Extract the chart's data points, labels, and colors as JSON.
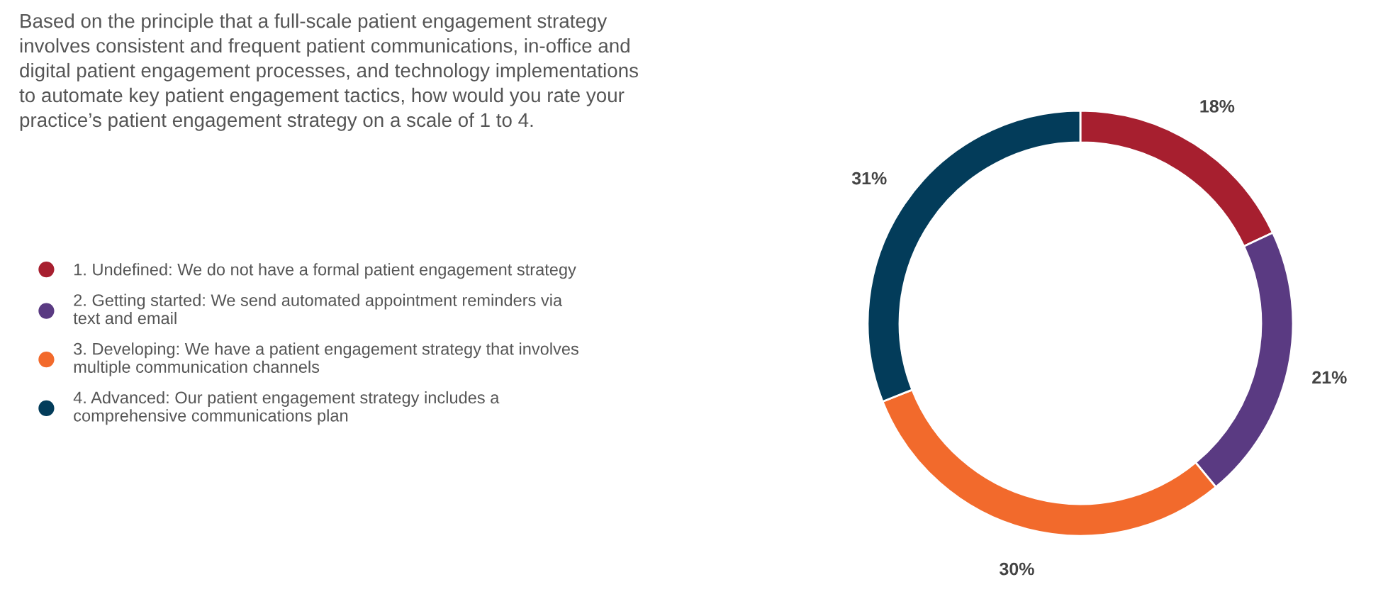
{
  "chart_data": {
    "type": "donut",
    "title": "Based on the principle that a full-scale patient engagement strategy\ninvolves consistent and frequent patient communications, in-office and\ndigital patient engagement processes, and technology implementations\nto automate key patient engagement tactics, how would you rate your\npractice’s patient engagement strategy on a scale of 1 to 4.",
    "categories": [
      "1. Undefined: We do not have a formal patient engagement strategy",
      "2. Getting started: We send automated appointment reminders via\ntext and email",
      "3. Developing: We have a patient engagement strategy that involves\nmultiple communication channels",
      "4. Advanced: Our patient engagement strategy includes a\ncomprehensive communications plan"
    ],
    "values": [
      18,
      21,
      30,
      31
    ],
    "colors": [
      "#a71f2f",
      "#5a3a82",
      "#f26a2c",
      "#033c5a"
    ],
    "value_labels": [
      "18%",
      "21%",
      "30%",
      "31%"
    ],
    "legend": "left"
  }
}
